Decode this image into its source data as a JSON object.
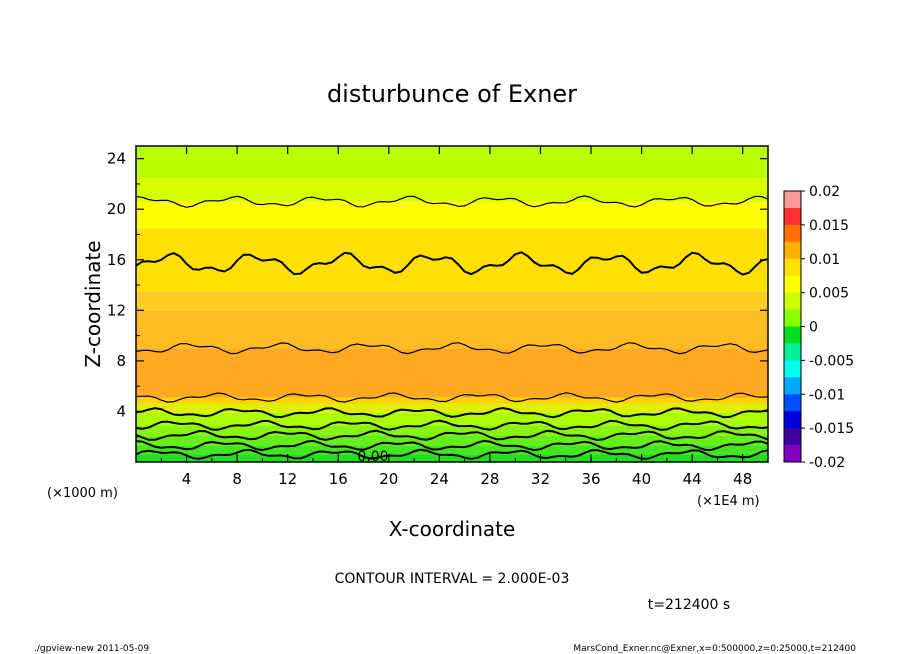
{
  "chart_data": {
    "type": "heatmap",
    "title": "disturbunce of Exner",
    "xlabel": "X-coordinate",
    "ylabel": "Z-coordinate",
    "x_unit": "(×1E4 m)",
    "y_unit": "(×1000 m)",
    "xlim": [
      0,
      50
    ],
    "ylim": [
      0,
      25
    ],
    "x_ticks": [
      4,
      8,
      12,
      16,
      20,
      24,
      28,
      32,
      36,
      40,
      44,
      48
    ],
    "y_ticks": [
      4,
      8,
      12,
      16,
      20,
      24
    ],
    "colorbar": {
      "range": [
        -0.02,
        0.02
      ],
      "tick_labels": [
        "0.02",
        "0.015",
        "0.01",
        "0.005",
        "0",
        "-0.005",
        "-0.01",
        "-0.015",
        "-0.02"
      ],
      "tick_values": [
        0.02,
        0.015,
        0.01,
        0.005,
        0,
        -0.005,
        -0.01,
        -0.015,
        -0.02
      ],
      "colors": [
        "#ff9999",
        "#ff3030",
        "#ff7000",
        "#ffb000",
        "#ffe000",
        "#ffff00",
        "#ccff00",
        "#88ff00",
        "#00e020",
        "#00ee99",
        "#00ffee",
        "#00a8ff",
        "#0050ff",
        "#0000dd",
        "#4000a0",
        "#8000c0"
      ]
    },
    "contour_interval_text": "CONTOUR INTERVAL = 2.000E-03",
    "contour_label": "0.00",
    "contour_levels_z": [
      0.6,
      1.3,
      2.1,
      2.9,
      3.9,
      5.1,
      9.0,
      15.7,
      20.6
    ],
    "bands": [
      {
        "z": [
          0,
          0.6
        ],
        "color": "#22dd22"
      },
      {
        "z": [
          0.6,
          1.3
        ],
        "color": "#44e622"
      },
      {
        "z": [
          1.3,
          2.1
        ],
        "color": "#66ee1a"
      },
      {
        "z": [
          2.1,
          2.9
        ],
        "color": "#88f511"
      },
      {
        "z": [
          2.9,
          3.9
        ],
        "color": "#aaff00"
      },
      {
        "z": [
          3.9,
          4.6
        ],
        "color": "#dcf000"
      },
      {
        "z": [
          4.6,
          5.1
        ],
        "color": "#ffd200"
      },
      {
        "z": [
          5.1,
          9.0
        ],
        "color": "#ffaa22"
      },
      {
        "z": [
          9.0,
          12.0
        ],
        "color": "#ffbb22"
      },
      {
        "z": [
          12.0,
          13.5
        ],
        "color": "#ffcc22"
      },
      {
        "z": [
          13.5,
          18.5
        ],
        "color": "#ffe000"
      },
      {
        "z": [
          18.5,
          20.6
        ],
        "color": "#ffff00"
      },
      {
        "z": [
          20.6,
          22.5
        ],
        "color": "#d8ff00"
      },
      {
        "z": [
          22.5,
          25.0
        ],
        "color": "#b8ff00"
      }
    ],
    "time_label": "t=212400 s"
  },
  "footer": {
    "left": "./gpview-new  2011-05-09",
    "right": "MarsCond_Exner.nc@Exner,x=0:500000,z=0:25000,t=212400"
  }
}
